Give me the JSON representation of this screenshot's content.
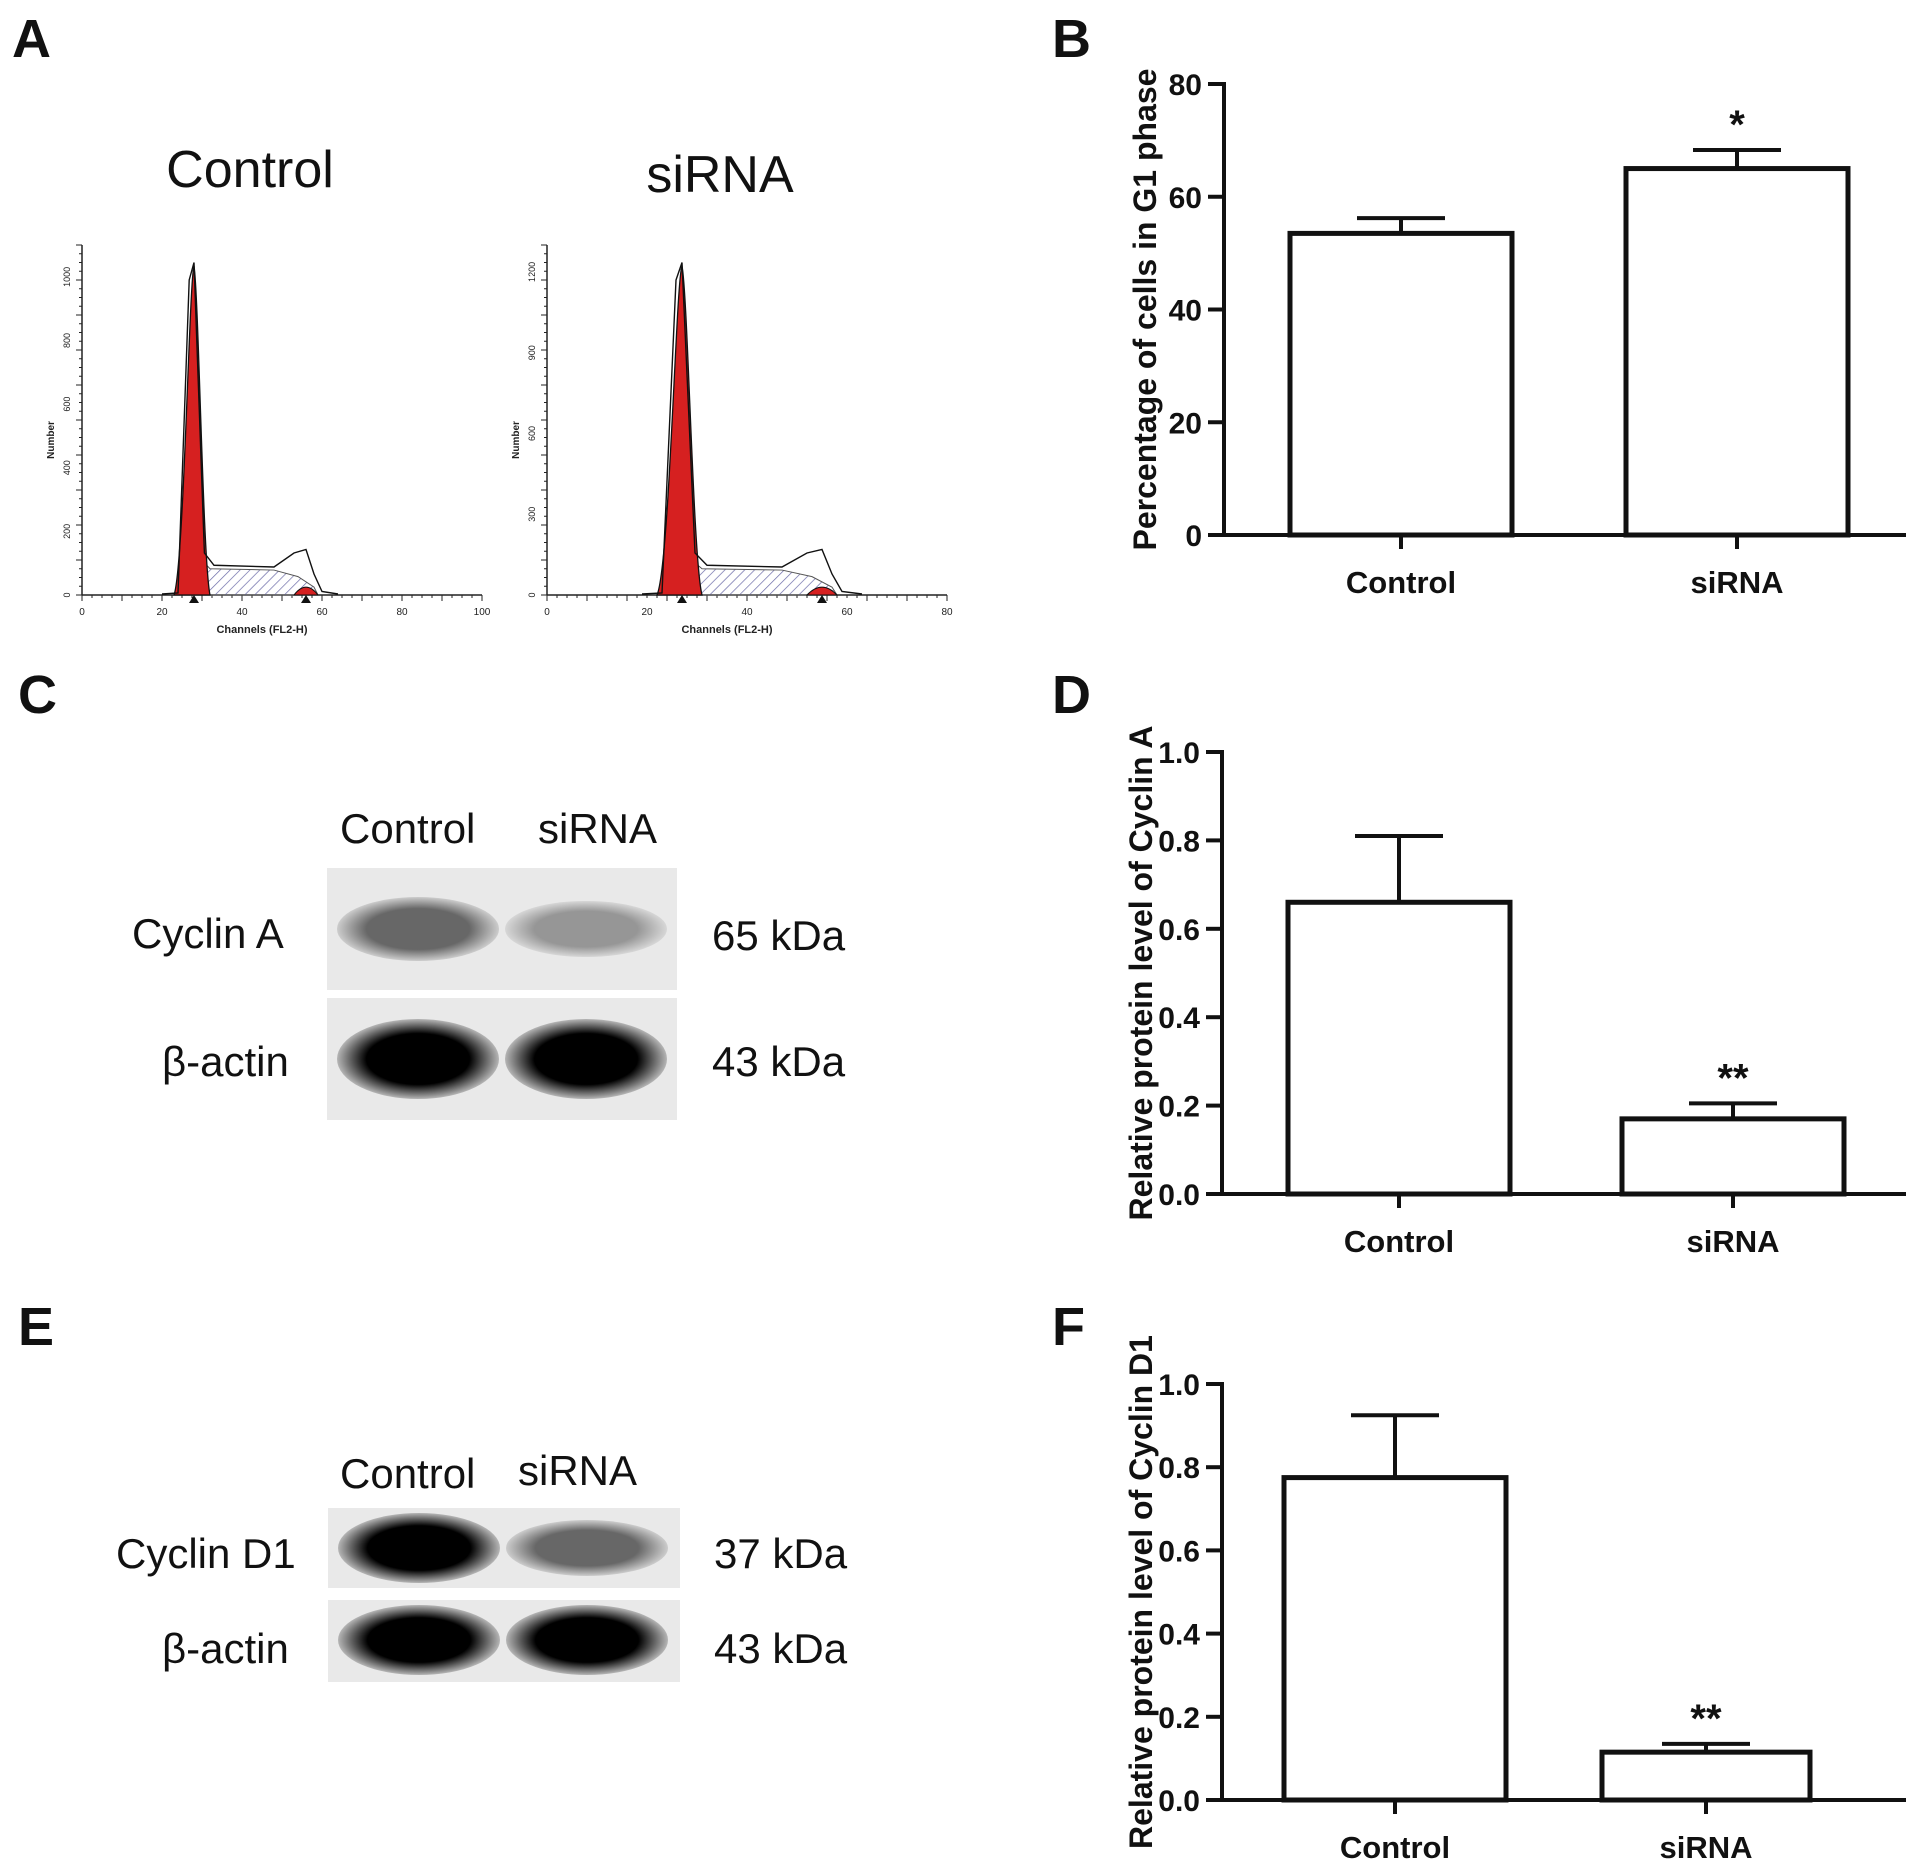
{
  "panels": {
    "a": "A",
    "b": "B",
    "c": "C",
    "d": "D",
    "e": "E",
    "f": "F"
  },
  "flow": {
    "left": {
      "title": "Control",
      "ylabel": "Number",
      "xlabel": "Channels  (FL2-H)",
      "yticks": [
        "0",
        "200",
        "400",
        "600",
        "800",
        "1000"
      ],
      "xticks": [
        "0",
        "20",
        "40",
        "60",
        "80",
        "100"
      ],
      "xmax": 100,
      "ymax": 1100,
      "g1_peak": 28,
      "g2_peak": 56
    },
    "right": {
      "title": "siRNA",
      "ylabel": "Number",
      "xlabel": "Channels  (FL2-H)",
      "yticks": [
        "0",
        "300",
        "600",
        "900",
        "1200"
      ],
      "xticks": [
        "0",
        "20",
        "40",
        "60",
        "80"
      ],
      "xmax": 80,
      "ymax": 1300,
      "g1_peak": 27,
      "g2_peak": 55
    },
    "colors": {
      "g1": "#d62020",
      "s_phase_hatch": "#6a6aa8",
      "outline": "#111111"
    }
  },
  "blot_c": {
    "lanes": [
      "Control",
      "siRNA"
    ],
    "rows": [
      {
        "protein": "Cyclin A",
        "size": "65 kDa",
        "intensity": [
          0.55,
          0.35
        ]
      },
      {
        "protein": "β-actin",
        "size": "43 kDa",
        "intensity": [
          1.0,
          1.0
        ]
      }
    ]
  },
  "blot_e": {
    "lanes": [
      "Control",
      "siRNA"
    ],
    "rows": [
      {
        "protein": "Cyclin D1",
        "size": "37 kDa",
        "intensity": [
          1.0,
          0.55
        ]
      },
      {
        "protein": "β-actin",
        "size": "43 kDa",
        "intensity": [
          1.0,
          1.0
        ]
      }
    ]
  },
  "chart_data": [
    {
      "panel": "B",
      "type": "bar",
      "categories": [
        "Control",
        "siRNA"
      ],
      "values": [
        53.5,
        65
      ],
      "errors": [
        2.7,
        3.3
      ],
      "significance": [
        "",
        "*"
      ],
      "ylabel": "Percentage of cells in G1 phase",
      "ylim": [
        0,
        80
      ],
      "yticks": [
        "0",
        "20",
        "40",
        "60",
        "80"
      ],
      "yticks_num": [
        0,
        20,
        40,
        60,
        80
      ]
    },
    {
      "panel": "D",
      "type": "bar",
      "categories": [
        "Control",
        "siRNA"
      ],
      "values": [
        0.66,
        0.17
      ],
      "errors": [
        0.15,
        0.035
      ],
      "significance": [
        "",
        "**"
      ],
      "ylabel": "Relative protein level of Cyclin A",
      "ylim": [
        0,
        1.0
      ],
      "yticks": [
        "0.0",
        "0.2",
        "0.4",
        "0.6",
        "0.8",
        "1.0"
      ],
      "yticks_num": [
        0,
        0.2,
        0.4,
        0.6,
        0.8,
        1.0
      ]
    },
    {
      "panel": "F",
      "type": "bar",
      "categories": [
        "Control",
        "siRNA"
      ],
      "values": [
        0.775,
        0.115
      ],
      "errors": [
        0.15,
        0.02
      ],
      "significance": [
        "",
        "**"
      ],
      "ylabel": "Relative protein level of Cyclin D1",
      "ylim": [
        0,
        1.0
      ],
      "yticks": [
        "0.0",
        "0.2",
        "0.4",
        "0.6",
        "0.8",
        "1.0"
      ],
      "yticks_num": [
        0,
        0.2,
        0.4,
        0.6,
        0.8,
        1.0
      ]
    }
  ]
}
